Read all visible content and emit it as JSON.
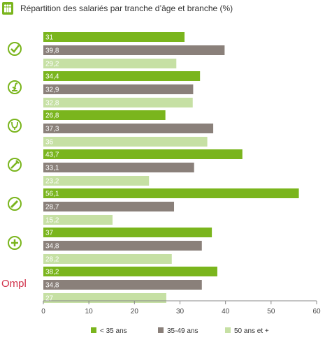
{
  "chart_data": {
    "type": "bar",
    "orientation": "horizontal",
    "title": "Répartition des salariés par tranche d’âge et branche (%)",
    "groups": [
      "",
      "",
      "",
      "",
      "",
      "",
      "Ompl"
    ],
    "series": [
      {
        "name": "< 35 ans",
        "color": "#7ab51d",
        "values": [
          31,
          34.4,
          26.8,
          43.7,
          56.1,
          37,
          38.2
        ],
        "labels": [
          "31",
          "34,4",
          "26,8",
          "43,7",
          "56,1",
          "37",
          "38,2"
        ]
      },
      {
        "name": "35-49 ans",
        "color": "#8a807a",
        "values": [
          39.8,
          32.9,
          37.3,
          33.1,
          28.7,
          34.8,
          34.8
        ],
        "labels": [
          "39,8",
          "32,9",
          "37,3",
          "33,1",
          "28,7",
          "34,8",
          "34,8"
        ]
      },
      {
        "name": "50 ans et +",
        "color": "#c6e0a4",
        "values": [
          29.2,
          32.8,
          36,
          23.2,
          15.2,
          28.2,
          27
        ],
        "labels": [
          "29,2",
          "32,8",
          "36",
          "23,2",
          "15,2",
          "28,2",
          "27"
        ]
      }
    ],
    "xlim": [
      0,
      60
    ],
    "xticks": [
      "0",
      "10",
      "20",
      "30",
      "40",
      "50",
      "60"
    ],
    "legend_position": "bottom",
    "grid": false
  },
  "icons": {
    "title": "people-icon",
    "groups": [
      "check-icon",
      "microscope-icon",
      "stethoscope-icon",
      "syringe-icon",
      "pen-icon",
      "plus-icon",
      "ompl-logo"
    ]
  }
}
